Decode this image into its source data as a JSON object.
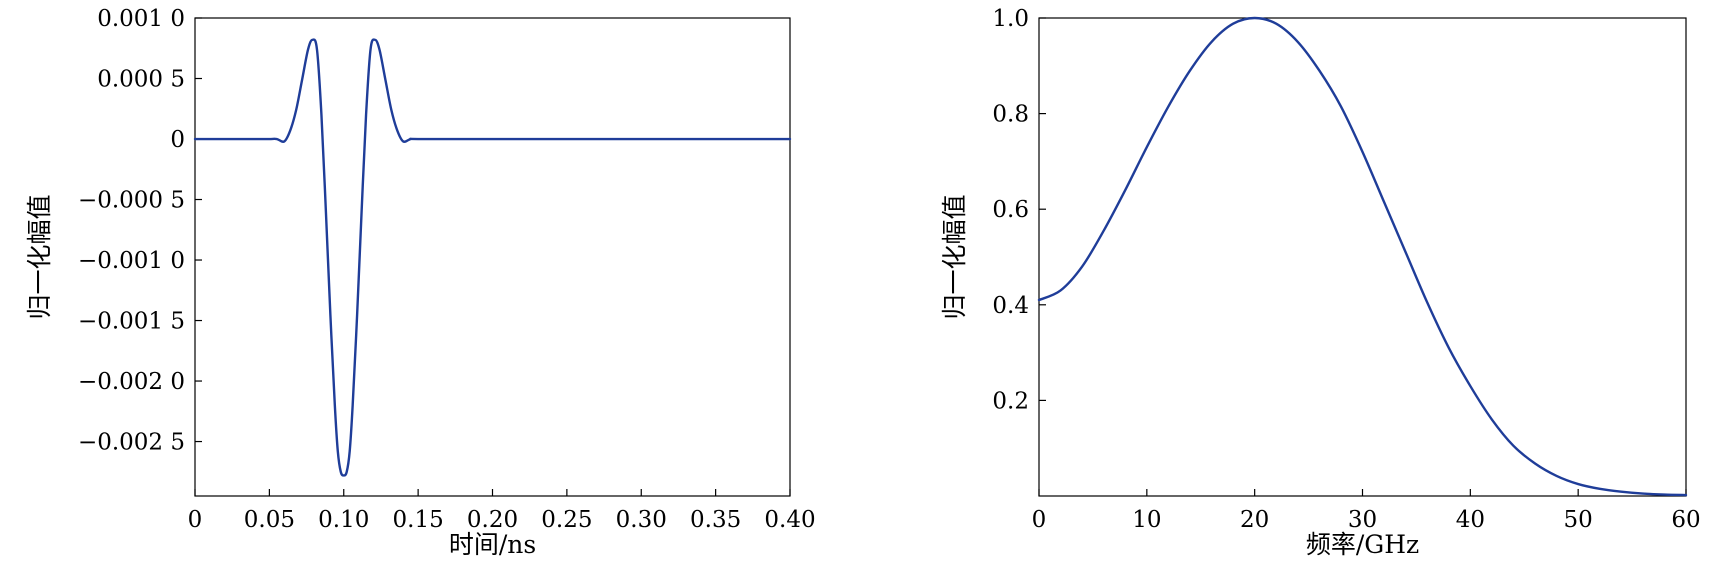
{
  "chart_data": [
    {
      "type": "line",
      "title": "",
      "xlabel": "时间/ns",
      "ylabel": "归一化幅值",
      "xlim": [
        0,
        0.4
      ],
      "ylim": [
        -0.00295,
        0.001
      ],
      "grid": false,
      "xticks": [
        0,
        0.05,
        0.1,
        0.15,
        0.2,
        0.25,
        0.3,
        0.35,
        0.4
      ],
      "xtick_labels": [
        "0",
        "0.05",
        "0.10",
        "0.15",
        "0.20",
        "0.25",
        "0.30",
        "0.35",
        "0.40"
      ],
      "yticks": [
        0.001,
        0.0005,
        0,
        -0.0005,
        -0.001,
        -0.0015,
        -0.002,
        -0.0025
      ],
      "ytick_labels": [
        "0.001 0",
        "0.000 5",
        "0",
        "−0.000 5",
        "−0.001 0",
        "−0.001 5",
        "−0.002 0",
        "−0.002 5"
      ],
      "color": "#1f3d99",
      "series": [
        {
          "x": [
            0,
            0.02,
            0.04,
            0.05,
            0.055,
            0.06,
            0.064,
            0.068,
            0.072,
            0.076,
            0.079,
            0.082,
            0.085,
            0.088,
            0.091,
            0.094,
            0.096,
            0.098,
            0.1,
            0.102,
            0.104,
            0.106,
            0.109,
            0.112,
            0.115,
            0.118,
            0.121,
            0.124,
            0.128,
            0.132,
            0.136,
            0.14,
            0.145,
            0.15,
            0.2,
            0.25,
            0.3,
            0.35,
            0.4
          ],
          "values": [
            0,
            0,
            0,
            0,
            0,
            -2e-05,
            7e-05,
            0.00024,
            0.00049,
            0.00074,
            0.00082,
            0.00074,
            0.0002,
            -0.0006,
            -0.00145,
            -0.0022,
            -0.00258,
            -0.00275,
            -0.00278,
            -0.00275,
            -0.00258,
            -0.0022,
            -0.00145,
            -0.0006,
            0.0002,
            0.00074,
            0.00082,
            0.00074,
            0.00049,
            0.00024,
            7e-05,
            -2e-05,
            0,
            0,
            0,
            0,
            0,
            0,
            0
          ]
        }
      ]
    },
    {
      "type": "line",
      "title": "",
      "xlabel": "频率/GHz",
      "ylabel": "归一化幅值",
      "xlim": [
        0,
        60
      ],
      "ylim": [
        0,
        1.0
      ],
      "grid": false,
      "xticks": [
        0,
        10,
        20,
        30,
        40,
        50,
        60
      ],
      "xtick_labels": [
        "0",
        "10",
        "20",
        "30",
        "40",
        "50",
        "60"
      ],
      "yticks": [
        0.2,
        0.4,
        0.6,
        0.8,
        1.0
      ],
      "ytick_labels": [
        "0.2",
        "0.4",
        "0.6",
        "0.8",
        "1.0"
      ],
      "color": "#1f3d99",
      "series": [
        {
          "x": [
            0,
            2,
            4,
            6,
            8,
            10,
            12,
            14,
            16,
            18,
            20,
            22,
            24,
            26,
            28,
            30,
            32,
            34,
            36,
            38,
            40,
            42,
            44,
            46,
            48,
            50,
            52,
            54,
            56,
            58,
            60
          ],
          "values": [
            0.41,
            0.43,
            0.48,
            0.555,
            0.64,
            0.73,
            0.815,
            0.89,
            0.95,
            0.988,
            1.0,
            0.988,
            0.95,
            0.89,
            0.815,
            0.72,
            0.615,
            0.51,
            0.405,
            0.31,
            0.23,
            0.16,
            0.105,
            0.068,
            0.042,
            0.025,
            0.015,
            0.009,
            0.005,
            0.003,
            0.002
          ]
        }
      ]
    }
  ]
}
